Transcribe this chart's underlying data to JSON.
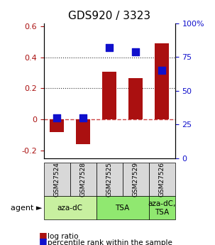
{
  "title": "GDS920 / 3323",
  "samples": [
    "GSM27524",
    "GSM27528",
    "GSM27525",
    "GSM27529",
    "GSM27526"
  ],
  "log_ratios": [
    -0.08,
    -0.16,
    0.305,
    0.265,
    0.49
  ],
  "percentile_ranks": [
    0.3,
    0.3,
    0.82,
    0.79,
    0.65
  ],
  "agents": [
    {
      "label": "aza-dC",
      "span": [
        0,
        2
      ],
      "color": "#c8f0a0"
    },
    {
      "label": "TSA",
      "span": [
        2,
        4
      ],
      "color": "#90e870"
    },
    {
      "label": "aza-dC,\nTSA",
      "span": [
        4,
        5
      ],
      "color": "#90e870"
    }
  ],
  "bar_color": "#aa1010",
  "dot_color": "#1010cc",
  "ylim_left": [
    -0.25,
    0.62
  ],
  "ylim_right": [
    0,
    100
  ],
  "yticks_left": [
    -0.2,
    0.0,
    0.2,
    0.4,
    0.6
  ],
  "yticks_left_labels": [
    "-0.2",
    "0",
    "0.2",
    "0.4",
    "0.6"
  ],
  "yticks_right": [
    0,
    25,
    50,
    75,
    100
  ],
  "yticks_right_labels": [
    "0",
    "25",
    "50",
    "75",
    "100%"
  ],
  "hlines": [
    0.0,
    0.2,
    0.4
  ],
  "hline_zero_color": "#cc4444",
  "hline_dotted_color": "#333333",
  "bar_width": 0.55,
  "dot_size": 60
}
